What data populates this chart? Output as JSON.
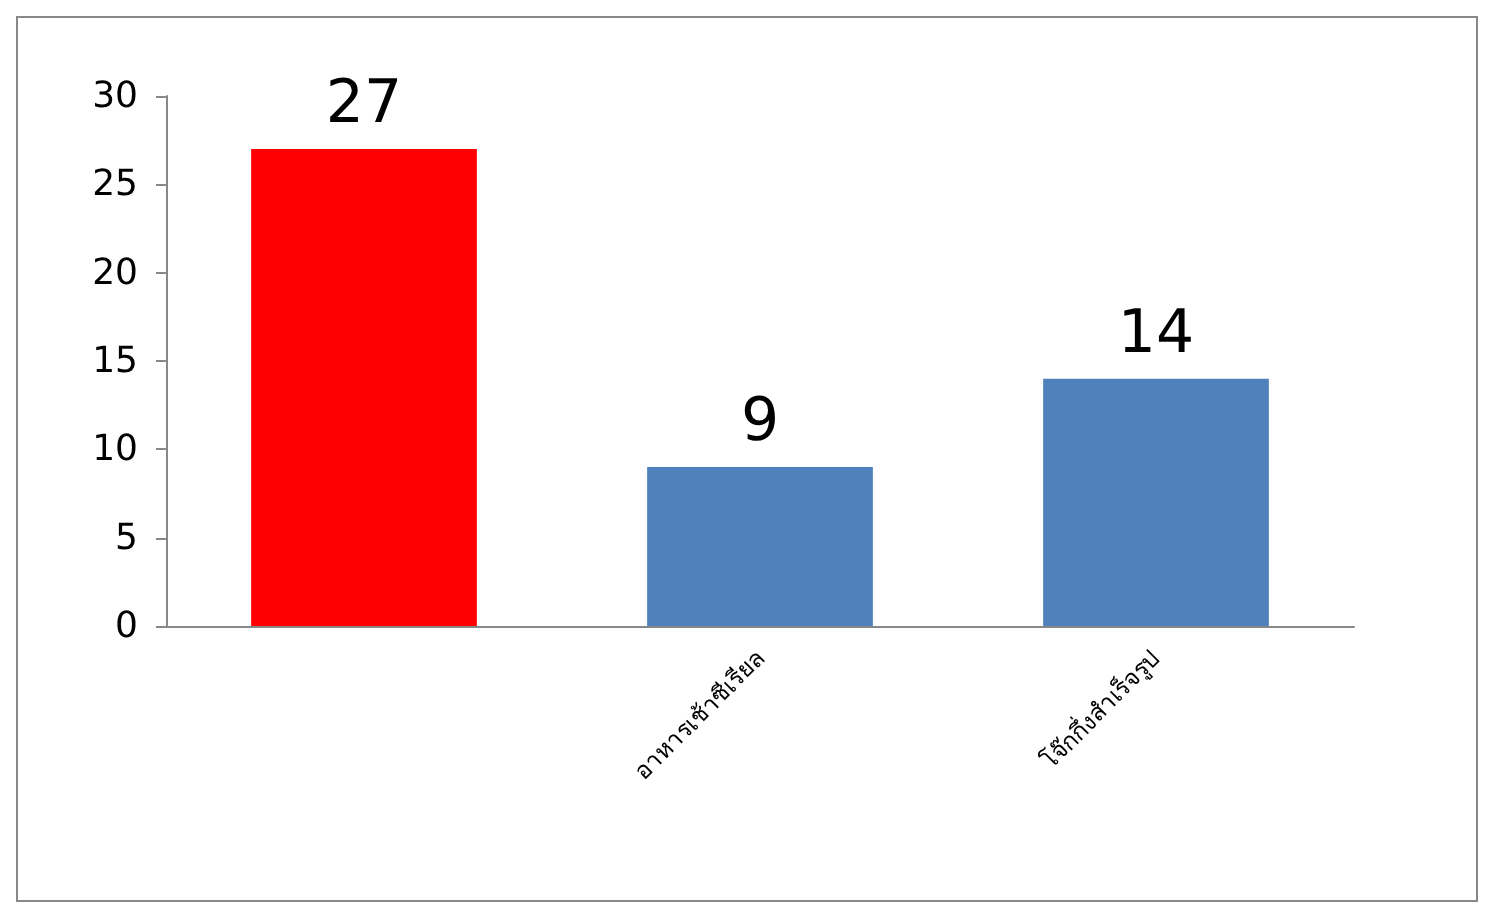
{
  "chart_data": {
    "type": "bar",
    "categories": [
      null,
      "อาหารเช้าซีเรียล",
      "โจ๊กกึ่งสำเร็จรูป"
    ],
    "values": [
      27,
      9,
      14
    ],
    "colors": [
      "#ff0000",
      "#4f81bd",
      "#4f81bd"
    ],
    "ylim": [
      0,
      30
    ],
    "yticks": [
      0,
      5,
      10,
      15,
      20,
      25,
      30
    ],
    "grid": false,
    "data_labels": true
  }
}
